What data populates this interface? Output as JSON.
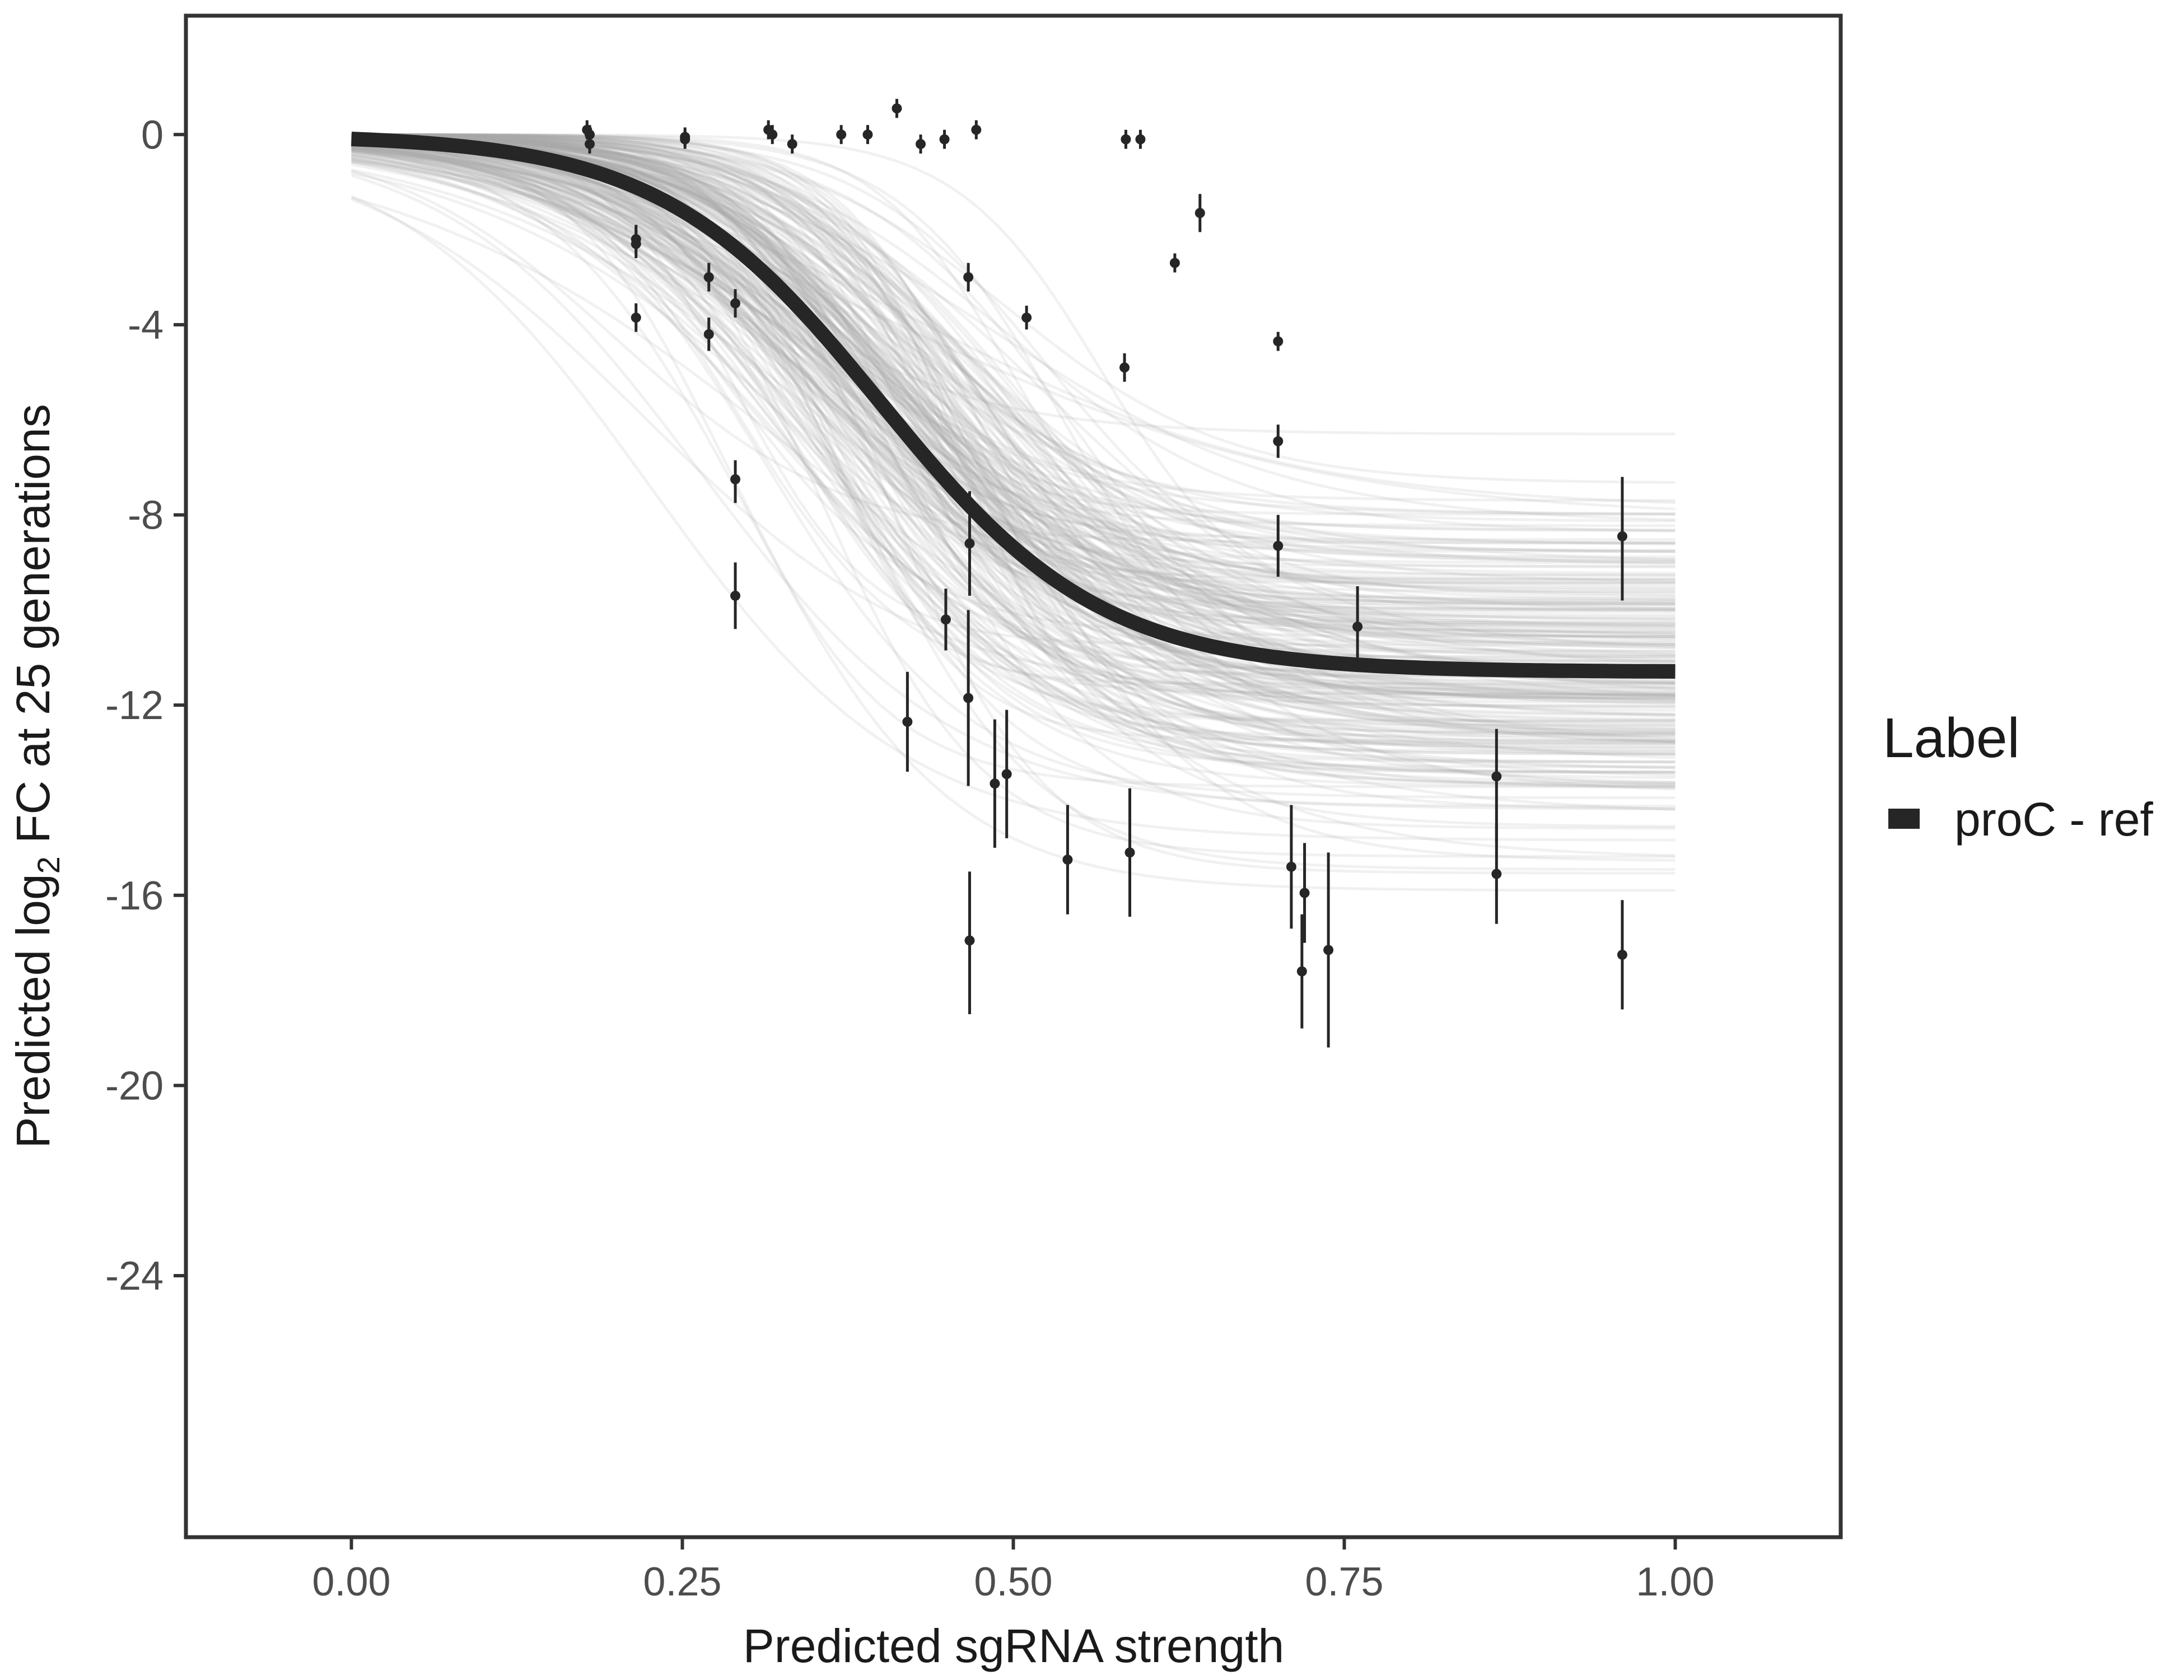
{
  "chart_data": {
    "type": "scatter",
    "xlabel": "Predicted sgRNA strength",
    "ylabel_parts": {
      "pre": "Predicted  log",
      "sub": "2",
      "post": " FC at 25 generations"
    },
    "xlim": [
      -0.125,
      1.125
    ],
    "ylim": [
      -29.5,
      2.5
    ],
    "x_ticks": [
      {
        "value": 0.0,
        "label": "0.00"
      },
      {
        "value": 0.25,
        "label": "0.25"
      },
      {
        "value": 0.5,
        "label": "0.50"
      },
      {
        "value": 0.75,
        "label": "0.75"
      },
      {
        "value": 1.0,
        "label": "1.00"
      }
    ],
    "y_ticks": [
      {
        "value": 0,
        "label": "0"
      },
      {
        "value": -4,
        "label": "-4"
      },
      {
        "value": -8,
        "label": "-8"
      },
      {
        "value": -12,
        "label": "-12"
      },
      {
        "value": -16,
        "label": "-16"
      },
      {
        "value": -20,
        "label": "-20"
      },
      {
        "value": -24,
        "label": "-24"
      }
    ],
    "legend": {
      "title": "Label",
      "entries": [
        {
          "label": "proC - ref",
          "color": "#262626"
        }
      ]
    },
    "fit_curve": {
      "name": "proC - ref",
      "lower": -11.3,
      "midpoint": 0.4,
      "slope": 12,
      "color": "#262626"
    },
    "posterior_draws": {
      "count": 250,
      "color": "#ababab"
    },
    "points": [
      {
        "x": 0.178,
        "y": 0.1,
        "lo": -0.1,
        "hi": 0.3
      },
      {
        "x": 0.18,
        "y": -0.2,
        "lo": -0.4,
        "hi": 0.0
      },
      {
        "x": 0.18,
        "y": 0.0,
        "lo": -0.2,
        "hi": 0.2
      },
      {
        "x": 0.215,
        "y": -2.2,
        "lo": -2.5,
        "hi": -1.9
      },
      {
        "x": 0.215,
        "y": -2.3,
        "lo": -2.6,
        "hi": -2.0
      },
      {
        "x": 0.215,
        "y": -3.85,
        "lo": -4.15,
        "hi": -3.55
      },
      {
        "x": 0.252,
        "y": -0.1,
        "lo": -0.3,
        "hi": 0.1
      },
      {
        "x": 0.252,
        "y": -0.05,
        "lo": -0.25,
        "hi": 0.15
      },
      {
        "x": 0.27,
        "y": -3.0,
        "lo": -3.3,
        "hi": -2.7
      },
      {
        "x": 0.27,
        "y": -4.2,
        "lo": -4.55,
        "hi": -3.85
      },
      {
        "x": 0.29,
        "y": -3.55,
        "lo": -3.85,
        "hi": -3.25
      },
      {
        "x": 0.29,
        "y": -7.25,
        "lo": -7.75,
        "hi": -6.85
      },
      {
        "x": 0.29,
        "y": -9.7,
        "lo": -10.4,
        "hi": -9.0
      },
      {
        "x": 0.315,
        "y": 0.1,
        "lo": -0.1,
        "hi": 0.3
      },
      {
        "x": 0.318,
        "y": 0.0,
        "lo": -0.2,
        "hi": 0.2
      },
      {
        "x": 0.333,
        "y": -0.2,
        "lo": -0.4,
        "hi": 0.0
      },
      {
        "x": 0.37,
        "y": 0.0,
        "lo": -0.2,
        "hi": 0.2
      },
      {
        "x": 0.39,
        "y": 0.0,
        "lo": -0.2,
        "hi": 0.2
      },
      {
        "x": 0.412,
        "y": 0.55,
        "lo": 0.35,
        "hi": 0.75
      },
      {
        "x": 0.42,
        "y": -12.35,
        "lo": -13.4,
        "hi": -11.3
      },
      {
        "x": 0.43,
        "y": -0.2,
        "lo": -0.4,
        "hi": 0.0
      },
      {
        "x": 0.448,
        "y": -0.1,
        "lo": -0.3,
        "hi": 0.1
      },
      {
        "x": 0.449,
        "y": -10.2,
        "lo": -10.85,
        "hi": -9.55
      },
      {
        "x": 0.466,
        "y": -3.0,
        "lo": -3.3,
        "hi": -2.7
      },
      {
        "x": 0.466,
        "y": -11.85,
        "lo": -13.7,
        "hi": -10.0
      },
      {
        "x": 0.467,
        "y": -8.6,
        "lo": -9.7,
        "hi": -7.5
      },
      {
        "x": 0.467,
        "y": -16.95,
        "lo": -18.5,
        "hi": -15.5
      },
      {
        "x": 0.472,
        "y": 0.1,
        "lo": -0.1,
        "hi": 0.3
      },
      {
        "x": 0.486,
        "y": -13.65,
        "lo": -15.0,
        "hi": -12.3
      },
      {
        "x": 0.495,
        "y": -13.45,
        "lo": -14.8,
        "hi": -12.1
      },
      {
        "x": 0.51,
        "y": -3.85,
        "lo": -4.1,
        "hi": -3.6
      },
      {
        "x": 0.541,
        "y": -15.25,
        "lo": -16.4,
        "hi": -14.1
      },
      {
        "x": 0.584,
        "y": -4.9,
        "lo": -5.2,
        "hi": -4.6
      },
      {
        "x": 0.585,
        "y": -0.1,
        "lo": -0.3,
        "hi": 0.1
      },
      {
        "x": 0.588,
        "y": -15.1,
        "lo": -16.45,
        "hi": -13.75
      },
      {
        "x": 0.596,
        "y": -0.1,
        "lo": -0.3,
        "hi": 0.1
      },
      {
        "x": 0.622,
        "y": -2.7,
        "lo": -2.9,
        "hi": -2.5
      },
      {
        "x": 0.641,
        "y": -1.65,
        "lo": -2.05,
        "hi": -1.25
      },
      {
        "x": 0.7,
        "y": -4.35,
        "lo": -4.55,
        "hi": -4.15
      },
      {
        "x": 0.7,
        "y": -6.45,
        "lo": -6.8,
        "hi": -6.1
      },
      {
        "x": 0.7,
        "y": -8.65,
        "lo": -9.3,
        "hi": -8.0
      },
      {
        "x": 0.71,
        "y": -15.4,
        "lo": -16.7,
        "hi": -14.1
      },
      {
        "x": 0.718,
        "y": -17.6,
        "lo": -18.8,
        "hi": -16.4
      },
      {
        "x": 0.72,
        "y": -15.95,
        "lo": -17.0,
        "hi": -14.9
      },
      {
        "x": 0.738,
        "y": -17.15,
        "lo": -19.2,
        "hi": -15.1
      },
      {
        "x": 0.76,
        "y": -10.35,
        "lo": -11.2,
        "hi": -9.5
      },
      {
        "x": 0.865,
        "y": -13.5,
        "lo": -14.9,
        "hi": -12.5
      },
      {
        "x": 0.865,
        "y": -15.55,
        "lo": -16.6,
        "hi": -14.5
      },
      {
        "x": 0.96,
        "y": -8.45,
        "lo": -9.8,
        "hi": -7.2
      },
      {
        "x": 0.96,
        "y": -17.25,
        "lo": -18.4,
        "hi": -16.1
      }
    ]
  }
}
